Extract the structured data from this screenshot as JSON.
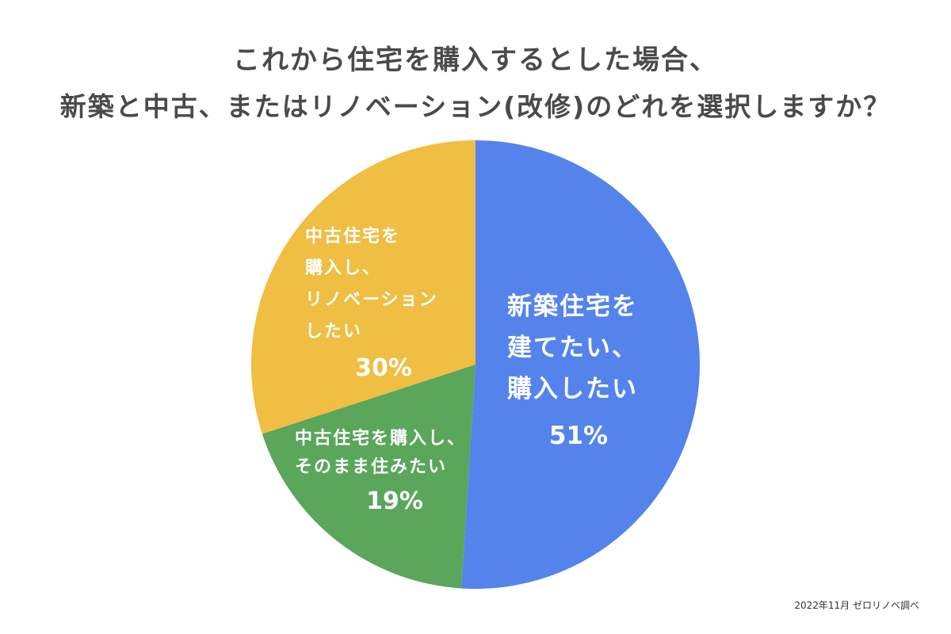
{
  "title_lines": [
    "これから住宅を購入するとした場合、",
    "新築と中古、またはリノベーション(改修)のどれを選択しますか？"
  ],
  "source_note": "2022年11月 ゼロリノベ調べ",
  "chart_data": {
    "type": "pie",
    "title": "これから住宅を購入するとした場合、新築と中古、またはリノベーション(改修)のどれを選択しますか？",
    "unit": "%",
    "start": "12 o'clock",
    "direction": "clockwise",
    "slices": [
      {
        "label_lines": [
          "新築住宅を",
          "建てたい、",
          "購入したい"
        ],
        "value_label": "51%",
        "value": 51,
        "color": "#5484EB"
      },
      {
        "label_lines": [
          "中古住宅を購入し、",
          "そのまま住みたい"
        ],
        "value_label": "19%",
        "value": 19,
        "color": "#5AA65B"
      },
      {
        "label_lines": [
          "中古住宅を",
          "購入し、",
          "リノベーション",
          "したい"
        ],
        "value_label": "30%",
        "value": 30,
        "color": "#EFBE42"
      }
    ]
  }
}
